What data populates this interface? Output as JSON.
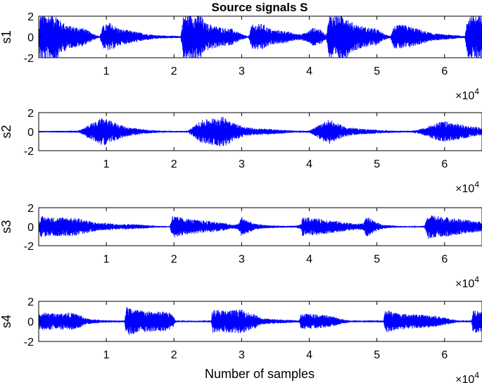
{
  "figure": {
    "title": "Source signals S",
    "xlabel": "Number of samples"
  },
  "colors": {
    "signal": "#0000ff",
    "axes": "#000000",
    "background": "#ffffff"
  },
  "chart_data": [
    {
      "type": "line",
      "name": "s1",
      "ylabel": "s1",
      "xlim": [
        0,
        65536
      ],
      "ylim": [
        -2,
        2
      ],
      "yticks": [
        -2,
        0,
        2
      ],
      "xticks": [
        10000,
        20000,
        30000,
        40000,
        50000,
        60000
      ],
      "xtick_labels": [
        "1",
        "2",
        "3",
        "4",
        "5",
        "6"
      ],
      "x_exponent_label": "×10",
      "x_exponent": "4",
      "grid": false,
      "envelope": [
        [
          0,
          0.05
        ],
        [
          200,
          2.2
        ],
        [
          2800,
          2.2
        ],
        [
          3200,
          1.6
        ],
        [
          4500,
          1.1
        ],
        [
          6500,
          0.9
        ],
        [
          8200,
          0.3
        ],
        [
          9000,
          0.05
        ],
        [
          9500,
          1.1
        ],
        [
          10500,
          1.4
        ],
        [
          12000,
          0.8
        ],
        [
          14500,
          0.5
        ],
        [
          16000,
          0.3
        ],
        [
          18000,
          0.15
        ],
        [
          21000,
          0.1
        ],
        [
          21400,
          2.2
        ],
        [
          24000,
          2.2
        ],
        [
          24500,
          1.4
        ],
        [
          26500,
          1.0
        ],
        [
          28500,
          0.8
        ],
        [
          30000,
          0.3
        ],
        [
          31000,
          0.05
        ],
        [
          31500,
          1.2
        ],
        [
          33000,
          1.3
        ],
        [
          34500,
          0.7
        ],
        [
          36500,
          0.6
        ],
        [
          38000,
          0.3
        ],
        [
          39500,
          0.4
        ],
        [
          40500,
          0.9
        ],
        [
          41500,
          0.8
        ],
        [
          42500,
          0.2
        ],
        [
          43000,
          2.2
        ],
        [
          45500,
          2.2
        ],
        [
          46000,
          1.5
        ],
        [
          48000,
          1.0
        ],
        [
          50000,
          0.8
        ],
        [
          51000,
          0.3
        ],
        [
          52000,
          0.1
        ],
        [
          52500,
          1.1
        ],
        [
          54000,
          1.2
        ],
        [
          56000,
          0.8
        ],
        [
          58000,
          0.4
        ],
        [
          60000,
          0.25
        ],
        [
          61500,
          0.2
        ],
        [
          63000,
          0.1
        ],
        [
          63500,
          2.2
        ],
        [
          65536,
          2.2
        ]
      ]
    },
    {
      "type": "line",
      "name": "s2",
      "ylabel": "s2",
      "xlim": [
        0,
        65536
      ],
      "ylim": [
        -2,
        2
      ],
      "yticks": [
        -2,
        0,
        2
      ],
      "xticks": [
        10000,
        20000,
        30000,
        40000,
        50000,
        60000
      ],
      "xtick_labels": [
        "1",
        "2",
        "3",
        "4",
        "5",
        "6"
      ],
      "x_exponent_label": "×10",
      "x_exponent": "4",
      "grid": false,
      "envelope": [
        [
          0,
          0.02
        ],
        [
          5500,
          0.03
        ],
        [
          6500,
          0.3
        ],
        [
          7500,
          0.8
        ],
        [
          8500,
          1.1
        ],
        [
          9500,
          1.5
        ],
        [
          10500,
          1.2
        ],
        [
          11500,
          0.9
        ],
        [
          13000,
          0.5
        ],
        [
          14500,
          0.35
        ],
        [
          16000,
          0.2
        ],
        [
          18000,
          0.12
        ],
        [
          20000,
          0.08
        ],
        [
          22000,
          0.1
        ],
        [
          23000,
          0.6
        ],
        [
          24000,
          1.2
        ],
        [
          25500,
          1.4
        ],
        [
          27000,
          1.6
        ],
        [
          28000,
          1.4
        ],
        [
          29000,
          0.9
        ],
        [
          30500,
          0.5
        ],
        [
          32000,
          0.35
        ],
        [
          34000,
          0.3
        ],
        [
          36000,
          0.2
        ],
        [
          38000,
          0.1
        ],
        [
          40000,
          0.12
        ],
        [
          41000,
          0.5
        ],
        [
          42000,
          1.0
        ],
        [
          43000,
          1.3
        ],
        [
          44000,
          0.9
        ],
        [
          45500,
          0.5
        ],
        [
          47000,
          0.35
        ],
        [
          49000,
          0.25
        ],
        [
          51000,
          0.15
        ],
        [
          53000,
          0.1
        ],
        [
          55000,
          0.1
        ],
        [
          56000,
          0.2
        ],
        [
          57500,
          0.5
        ],
        [
          58500,
          0.9
        ],
        [
          60000,
          1.1
        ],
        [
          61500,
          0.9
        ],
        [
          63000,
          0.7
        ],
        [
          64500,
          0.5
        ],
        [
          65536,
          0.4
        ]
      ]
    },
    {
      "type": "line",
      "name": "s3",
      "ylabel": "s3",
      "xlim": [
        0,
        65536
      ],
      "ylim": [
        -2,
        2
      ],
      "yticks": [
        -2,
        0,
        2
      ],
      "xticks": [
        10000,
        20000,
        30000,
        40000,
        50000,
        60000
      ],
      "xtick_labels": [
        "1",
        "2",
        "3",
        "4",
        "5",
        "6"
      ],
      "x_exponent_label": "×10",
      "x_exponent": "4",
      "grid": false,
      "envelope": [
        [
          0,
          0.4
        ],
        [
          300,
          1.1
        ],
        [
          2000,
          1.0
        ],
        [
          4000,
          1.0
        ],
        [
          6000,
          0.9
        ],
        [
          7500,
          0.6
        ],
        [
          9000,
          0.4
        ],
        [
          10000,
          0.4
        ],
        [
          11500,
          0.3
        ],
        [
          13500,
          0.3
        ],
        [
          15500,
          0.2
        ],
        [
          17500,
          0.1
        ],
        [
          19400,
          0.05
        ],
        [
          19700,
          1.2
        ],
        [
          21500,
          0.9
        ],
        [
          23500,
          0.7
        ],
        [
          25500,
          0.6
        ],
        [
          27500,
          0.4
        ],
        [
          28500,
          0.2
        ],
        [
          29500,
          0.3
        ],
        [
          30000,
          1.1
        ],
        [
          30800,
          0.7
        ],
        [
          32000,
          0.3
        ],
        [
          34000,
          0.15
        ],
        [
          36000,
          0.1
        ],
        [
          38000,
          0.1
        ],
        [
          38800,
          0.3
        ],
        [
          39000,
          1.0
        ],
        [
          41000,
          0.9
        ],
        [
          43000,
          0.7
        ],
        [
          45000,
          0.5
        ],
        [
          47000,
          0.3
        ],
        [
          48000,
          0.4
        ],
        [
          48500,
          1.1
        ],
        [
          49500,
          0.6
        ],
        [
          51000,
          0.2
        ],
        [
          53000,
          0.1
        ],
        [
          55500,
          0.05
        ],
        [
          57000,
          0.1
        ],
        [
          57600,
          1.3
        ],
        [
          59500,
          1.1
        ],
        [
          61500,
          0.9
        ],
        [
          63500,
          0.7
        ],
        [
          65536,
          0.5
        ]
      ]
    },
    {
      "type": "line",
      "name": "s4",
      "ylabel": "s4",
      "xlim": [
        0,
        65536
      ],
      "ylim": [
        -2,
        2
      ],
      "yticks": [
        -2,
        0,
        2
      ],
      "xticks": [
        10000,
        20000,
        30000,
        40000,
        50000,
        60000
      ],
      "xtick_labels": [
        "1",
        "2",
        "3",
        "4",
        "5",
        "6"
      ],
      "x_exponent_label": "×10",
      "x_exponent": "4",
      "grid": false,
      "envelope": [
        [
          0,
          0.8
        ],
        [
          800,
          0.9
        ],
        [
          3000,
          0.8
        ],
        [
          4500,
          0.9
        ],
        [
          6000,
          0.7
        ],
        [
          7000,
          0.3
        ],
        [
          9000,
          0.15
        ],
        [
          11000,
          0.1
        ],
        [
          12700,
          0.1
        ],
        [
          12900,
          1.5
        ],
        [
          14500,
          1.2
        ],
        [
          16500,
          1.0
        ],
        [
          18500,
          1.0
        ],
        [
          19800,
          0.8
        ],
        [
          20200,
          0.1
        ],
        [
          23000,
          0.08
        ],
        [
          25500,
          0.1
        ],
        [
          25700,
          1.2
        ],
        [
          28000,
          1.1
        ],
        [
          30000,
          1.2
        ],
        [
          31000,
          0.9
        ],
        [
          32000,
          0.7
        ],
        [
          33000,
          0.3
        ],
        [
          36000,
          0.2
        ],
        [
          38500,
          0.1
        ],
        [
          38800,
          0.8
        ],
        [
          41000,
          0.7
        ],
        [
          43000,
          0.6
        ],
        [
          44500,
          0.3
        ],
        [
          46000,
          0.1
        ],
        [
          51000,
          0.1
        ],
        [
          51200,
          1.2
        ],
        [
          53500,
          0.8
        ],
        [
          56000,
          0.7
        ],
        [
          58500,
          0.6
        ],
        [
          60500,
          0.3
        ],
        [
          62000,
          0.1
        ],
        [
          64000,
          0.1
        ],
        [
          64200,
          1.2
        ],
        [
          65536,
          1.0
        ]
      ]
    }
  ]
}
